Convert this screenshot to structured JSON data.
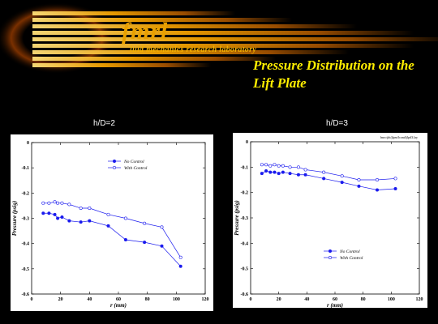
{
  "header": {
    "logo_main": "fmrl",
    "logo_sub": "luid mechanics research laboratory",
    "title": "Pressure Distribution on the Lift Plate",
    "colors": {
      "banner": "#f0a000",
      "title": "#ffee00",
      "series": "#1a1aee"
    }
  },
  "panels": [
    {
      "label": "h/D=2",
      "file_label": ""
    },
    {
      "label": "h/D=3",
      "file_label": "fmrc/ph/jlpm/lcond/jlpd3.lay"
    }
  ],
  "chart_data": [
    {
      "type": "line",
      "title": "h/D=2",
      "xlabel": "r (mm)",
      "ylabel": "Pressure (psig)",
      "xlim": [
        0,
        120
      ],
      "ylim": [
        -0.6,
        0
      ],
      "xticks": [
        0,
        20,
        40,
        60,
        80,
        100,
        120
      ],
      "yticks": [
        0,
        -0.1,
        -0.2,
        -0.3,
        -0.4,
        -0.5,
        -0.6
      ],
      "legend_position": "top-center",
      "series": [
        {
          "name": "No Control",
          "marker": "filled",
          "x": [
            8,
            12,
            16,
            18,
            21,
            26,
            34,
            40,
            53,
            65,
            78,
            90,
            103
          ],
          "y": [
            -0.28,
            -0.28,
            -0.285,
            -0.3,
            -0.295,
            -0.31,
            -0.315,
            -0.31,
            -0.33,
            -0.385,
            -0.395,
            -0.41,
            -0.49
          ]
        },
        {
          "name": "With Control",
          "marker": "open",
          "x": [
            8,
            12,
            16,
            18,
            21,
            26,
            34,
            40,
            53,
            65,
            78,
            90,
            103
          ],
          "y": [
            -0.24,
            -0.24,
            -0.235,
            -0.24,
            -0.24,
            -0.245,
            -0.26,
            -0.26,
            -0.285,
            -0.3,
            -0.32,
            -0.335,
            -0.455
          ]
        }
      ]
    },
    {
      "type": "line",
      "title": "h/D=3",
      "xlabel": "r (mm)",
      "ylabel": "Pressure (psig)",
      "xlim": [
        0,
        120
      ],
      "ylim": [
        -0.6,
        0
      ],
      "xticks": [
        0,
        20,
        40,
        60,
        80,
        100,
        120
      ],
      "yticks": [
        0,
        -0.1,
        -0.2,
        -0.3,
        -0.4,
        -0.5,
        -0.6
      ],
      "legend_position": "bottom-center",
      "series": [
        {
          "name": "No Control",
          "marker": "filled",
          "x": [
            8,
            11,
            14,
            17,
            20,
            23,
            28,
            34,
            39,
            52,
            65,
            77,
            90,
            103
          ],
          "y": [
            -0.125,
            -0.115,
            -0.12,
            -0.12,
            -0.125,
            -0.12,
            -0.125,
            -0.13,
            -0.13,
            -0.145,
            -0.16,
            -0.175,
            -0.19,
            -0.185
          ]
        },
        {
          "name": "With Control",
          "marker": "open",
          "x": [
            8,
            11,
            14,
            17,
            20,
            23,
            28,
            34,
            39,
            52,
            65,
            77,
            90,
            103
          ],
          "y": [
            -0.09,
            -0.09,
            -0.095,
            -0.09,
            -0.095,
            -0.095,
            -0.1,
            -0.1,
            -0.11,
            -0.12,
            -0.135,
            -0.15,
            -0.15,
            -0.145
          ]
        }
      ]
    }
  ]
}
